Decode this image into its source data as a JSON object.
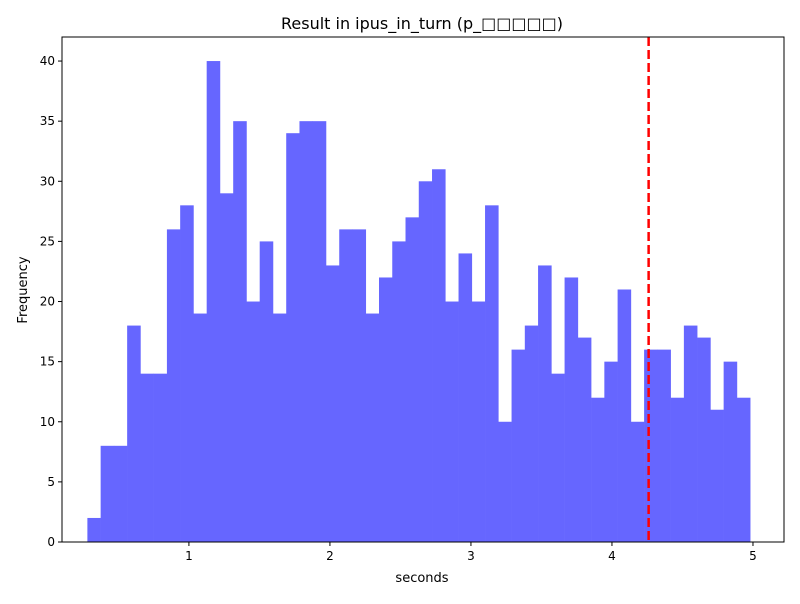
{
  "chart_data": {
    "type": "bar",
    "title": "Result in ipus_in_turn (p_□□□□□)",
    "xlabel": "seconds",
    "ylabel": "Frequency",
    "xlim": [
      0.1,
      5.22
    ],
    "ylim": [
      0,
      42
    ],
    "xticks": [
      1,
      2,
      3,
      4,
      5
    ],
    "xtick_labels": [
      "1",
      "2",
      "3",
      "4",
      "5"
    ],
    "yticks": [
      0,
      5,
      10,
      15,
      20,
      25,
      30,
      35,
      40
    ],
    "ytick_labels": [
      "0",
      "5",
      "10",
      "15",
      "20",
      "25",
      "30",
      "35",
      "40"
    ],
    "bar_color": "#6666ff",
    "bin_start": 0.28,
    "bin_width": 0.094,
    "values": [
      2,
      8,
      8,
      18,
      14,
      14,
      26,
      28,
      19,
      40,
      29,
      35,
      20,
      25,
      19,
      34,
      35,
      35,
      23,
      26,
      26,
      19,
      22,
      25,
      27,
      30,
      31,
      20,
      24,
      20,
      28,
      10,
      16,
      18,
      23,
      14,
      22,
      17,
      12,
      15,
      21,
      10,
      16,
      16,
      12,
      18,
      17,
      11,
      15,
      12
    ],
    "reference_line": {
      "x": 4.26,
      "color": "#ff0000",
      "style": "dashed"
    },
    "grid": false,
    "legend": false
  }
}
